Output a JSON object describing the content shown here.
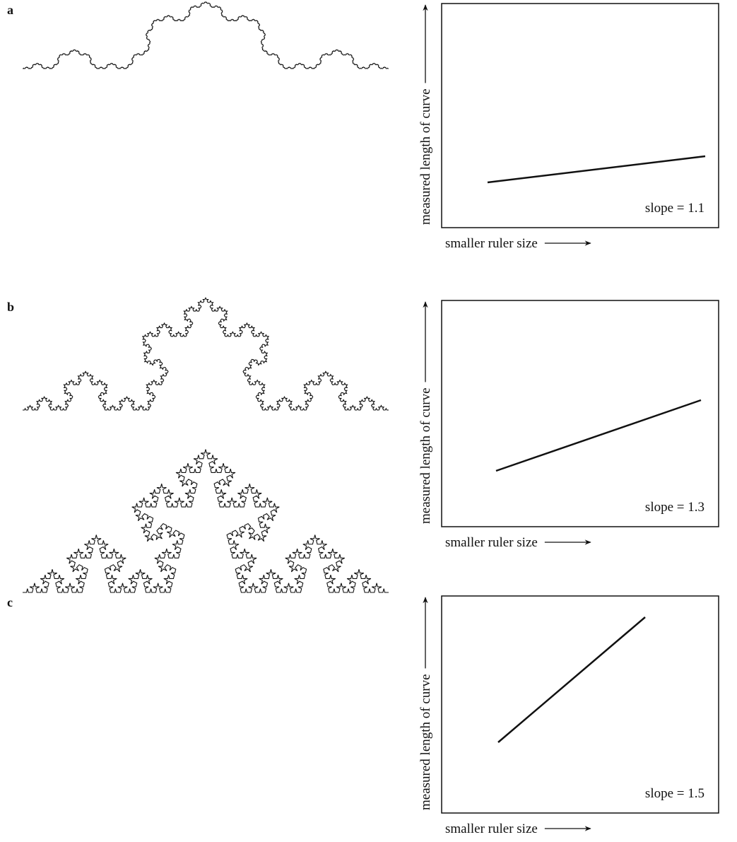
{
  "panels": [
    {
      "label": "a",
      "y_axis_label": "measured length of curve",
      "x_axis_label": "smaller ruler size",
      "slope_label": "slope = 1.1"
    },
    {
      "label": "b",
      "y_axis_label": "measured length of curve",
      "x_axis_label": "smaller ruler size",
      "slope_label": "slope = 1.3"
    },
    {
      "label": "c",
      "y_axis_label": "measured length of curve",
      "x_axis_label": "smaller ruler size",
      "slope_label": "slope = 1.5"
    }
  ]
}
